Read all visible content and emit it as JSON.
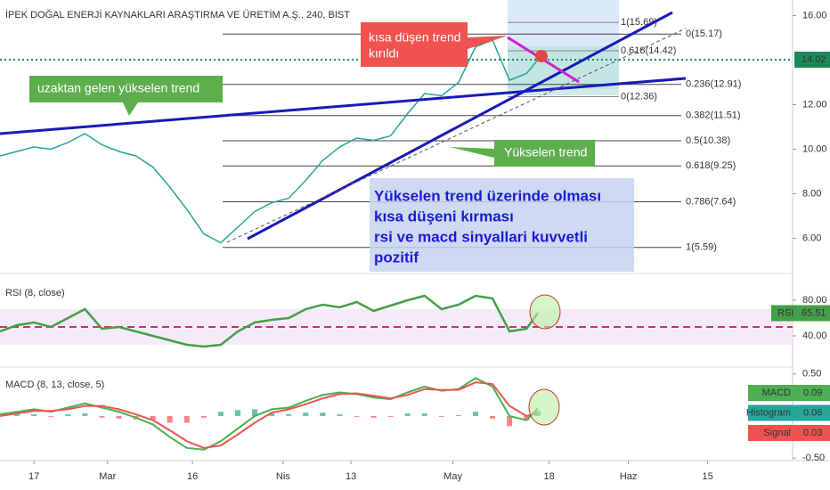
{
  "chart_data": [
    {
      "type": "price",
      "title": "İPEK DOĞAL ENERJİ KAYNAKLARI ARAŞTIRMA VE ÜRETİM A.Ş., 240, BIST",
      "x": [
        10,
        13,
        16,
        19,
        22,
        25,
        28,
        31,
        34,
        37,
        40,
        43,
        46,
        49,
        52,
        55,
        58,
        61,
        64,
        67,
        70,
        73,
        76,
        79,
        82,
        85,
        88,
        91,
        94,
        97,
        100,
        103,
        105
      ],
      "values": [
        9.7,
        9.9,
        10.1,
        10.0,
        10.3,
        10.7,
        10.2,
        9.9,
        9.7,
        9.2,
        8.3,
        7.3,
        6.2,
        5.8,
        6.5,
        7.2,
        7.6,
        7.8,
        8.6,
        9.5,
        10.1,
        10.5,
        10.4,
        10.6,
        11.6,
        12.5,
        12.4,
        13.0,
        14.6,
        14.9,
        13.1,
        13.4,
        14.02
      ],
      "color": "#26a69a",
      "xlim": [
        10,
        150
      ],
      "ylim": [
        4.5,
        16.7
      ],
      "yticks": [
        {
          "value": 16,
          "label": "16.00"
        },
        {
          "value": 12,
          "label": "12.00"
        },
        {
          "value": 10,
          "label": "10.00"
        },
        {
          "value": 8,
          "label": "8.00"
        },
        {
          "value": 6,
          "label": "6.00"
        }
      ],
      "last_value": 14.02,
      "fib_levels": [
        {
          "value": 15.17,
          "label": "0(15.17)"
        },
        {
          "value": 12.91,
          "label": "0.236(12.91)"
        },
        {
          "value": 11.51,
          "label": "0.382(11.51)"
        },
        {
          "value": 10.38,
          "label": "0.5(10.38)"
        },
        {
          "value": 9.25,
          "label": "0.618(9.25)"
        },
        {
          "value": 7.64,
          "label": "0.786(7.64)"
        },
        {
          "value": 5.59,
          "label": "1(5.59)"
        }
      ],
      "fib_levels_short": [
        {
          "value": 15.69,
          "label": "1(15.69)"
        },
        {
          "value": 14.42,
          "label": "0.618(14.42)"
        },
        {
          "value": 12.36,
          "label": "0(12.36)"
        }
      ],
      "annotations": [
        "kısa düşen trend",
        "kırıldı",
        "uzaktan gelen yükselen trend",
        "Yükselen trend",
        "Yükselen trend üzerinde olması",
        "kısa düşeni kırması",
        "rsi ve macd sinyallari kuvvetli",
        "pozitif"
      ]
    },
    {
      "type": "rsi",
      "title": "RSI (8, close)",
      "x": [
        10,
        13,
        16,
        19,
        22,
        25,
        28,
        31,
        34,
        37,
        40,
        43,
        46,
        49,
        52,
        55,
        58,
        61,
        64,
        67,
        70,
        73,
        76,
        79,
        82,
        85,
        88,
        91,
        94,
        97,
        100,
        103,
        105
      ],
      "values": [
        45,
        52,
        55,
        50,
        60,
        70,
        48,
        50,
        45,
        40,
        35,
        30,
        28,
        30,
        45,
        55,
        58,
        60,
        70,
        75,
        72,
        78,
        68,
        74,
        80,
        85,
        70,
        75,
        85,
        82,
        45,
        48,
        65.51
      ],
      "color": "#43a047",
      "xlim": [
        10,
        150
      ],
      "ylim": [
        7,
        105
      ],
      "yticks": [
        {
          "value": 80,
          "label": "80.00"
        },
        {
          "value": 40,
          "label": "40.00"
        }
      ],
      "reference_line": 50,
      "band": [
        30,
        70
      ],
      "last_label": "RSI"
    },
    {
      "type": "macd",
      "title": "MACD (8, 13, close, 5)",
      "x": [
        10,
        13,
        16,
        19,
        22,
        25,
        28,
        31,
        34,
        37,
        40,
        43,
        46,
        49,
        52,
        55,
        58,
        61,
        64,
        67,
        70,
        73,
        76,
        79,
        82,
        85,
        88,
        91,
        94,
        97,
        100,
        103,
        105
      ],
      "series": [
        {
          "name": "MACD",
          "color": "#4caf50",
          "values": [
            0.02,
            0.05,
            0.08,
            0.05,
            0.1,
            0.15,
            0.1,
            0.05,
            -0.02,
            -0.1,
            -0.25,
            -0.38,
            -0.4,
            -0.3,
            -0.15,
            0.0,
            0.08,
            0.1,
            0.18,
            0.25,
            0.28,
            0.26,
            0.22,
            0.2,
            0.28,
            0.35,
            0.3,
            0.32,
            0.45,
            0.35,
            0.0,
            -0.05,
            0.09
          ]
        },
        {
          "name": "Histogram",
          "color": "#26a69a",
          "values": [
            0.02,
            0.02,
            0.02,
            -0.01,
            0.02,
            0.03,
            -0.02,
            -0.03,
            -0.04,
            -0.05,
            -0.08,
            -0.08,
            -0.02,
            0.05,
            0.07,
            0.08,
            0.04,
            0.02,
            0.04,
            0.04,
            0.02,
            -0.01,
            -0.02,
            -0.01,
            0.03,
            0.03,
            -0.01,
            0.01,
            0.05,
            -0.03,
            -0.12,
            -0.05,
            0.06
          ]
        },
        {
          "name": "Signal",
          "color": "#ef5350",
          "values": [
            0.0,
            0.03,
            0.06,
            0.06,
            0.08,
            0.12,
            0.12,
            0.08,
            0.02,
            -0.05,
            -0.17,
            -0.3,
            -0.38,
            -0.35,
            -0.22,
            -0.08,
            0.04,
            0.08,
            0.14,
            0.21,
            0.26,
            0.27,
            0.24,
            0.21,
            0.25,
            0.32,
            0.31,
            0.31,
            0.4,
            0.38,
            0.12,
            0.0,
            0.03
          ]
        }
      ],
      "xlim": [
        10,
        150
      ],
      "ylim": [
        -0.53,
        0.55
      ],
      "yticks": [
        {
          "value": 0.5,
          "label": "0.50"
        },
        {
          "value": -0.5,
          "label": "-0.50"
        }
      ],
      "xticks": [
        {
          "value": 16,
          "label": "17"
        },
        {
          "value": 29,
          "label": "Mar"
        },
        {
          "value": 44,
          "label": "16"
        },
        {
          "value": 60,
          "label": "Nis"
        },
        {
          "value": 72,
          "label": "13"
        },
        {
          "value": 90,
          "label": "May"
        },
        {
          "value": 107,
          "label": "18"
        },
        {
          "value": 121,
          "label": "Haz"
        },
        {
          "value": 135,
          "label": "15"
        }
      ]
    }
  ]
}
